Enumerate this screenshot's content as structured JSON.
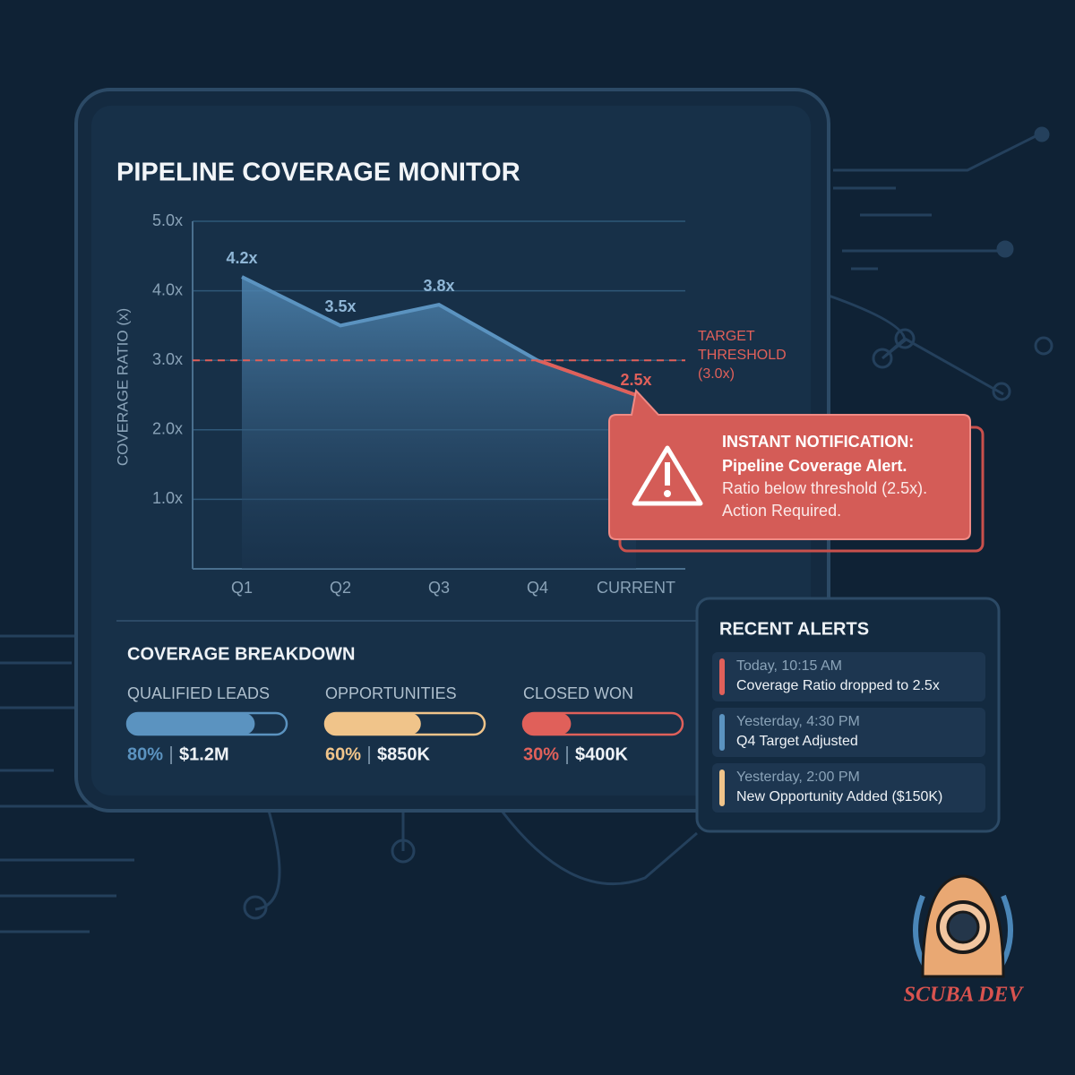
{
  "chart_data": {
    "type": "area",
    "title": "PIPELINE COVERAGE MONITOR",
    "y_label": "COVERAGE RATIO (x)",
    "categories": [
      "Q1",
      "Q2",
      "Q3",
      "Q4",
      "CURRENT"
    ],
    "values": [
      4.2,
      3.5,
      3.8,
      3.0,
      2.5
    ],
    "value_labels": [
      "4.2x",
      "3.5x",
      "3.8x",
      null,
      "2.5x"
    ],
    "color": "#5b93c0",
    "alert_color": "#e0605a",
    "ylim": [
      0,
      5
    ],
    "yticks": [
      {
        "value": 1,
        "label": "1.0x"
      },
      {
        "value": 2,
        "label": "2.0x"
      },
      {
        "value": 3,
        "label": "3.0x"
      },
      {
        "value": 4,
        "label": "4.0x"
      },
      {
        "value": 5,
        "label": "5.0x"
      }
    ],
    "grid": true,
    "threshold": {
      "value": 3,
      "lines": [
        "TARGET",
        "THRESHOLD",
        "(3.0x)"
      ]
    }
  },
  "notification": {
    "title": "INSTANT NOTIFICATION:",
    "headline": "Pipeline Coverage Alert.",
    "lines": [
      "Ratio below threshold (2.5x).",
      "Action Required."
    ]
  },
  "breakdown": {
    "title": "COVERAGE BREAKDOWN",
    "items": [
      {
        "name": "QUALIFIED LEADS",
        "percent": 80,
        "percent_label": "80%",
        "amount": "$1.2M",
        "color": "#5b93c0"
      },
      {
        "name": "OPPORTUNITIES",
        "percent": 60,
        "percent_label": "60%",
        "amount": "$850K",
        "color": "#f0c48a"
      },
      {
        "name": "CLOSED WON",
        "percent": 30,
        "percent_label": "30%",
        "amount": "$400K",
        "color": "#e0605a"
      }
    ]
  },
  "alerts": {
    "title": "RECENT ALERTS",
    "items": [
      {
        "time": "Today, 10:15 AM",
        "text": "Coverage Ratio dropped to 2.5x",
        "color": "#e0605a"
      },
      {
        "time": "Yesterday, 4:30 PM",
        "text": "Q4 Target Adjusted",
        "color": "#5b93c0"
      },
      {
        "time": "Yesterday, 2:00 PM",
        "text": "New Opportunity Added ($150K)",
        "color": "#f0c48a"
      }
    ]
  },
  "logo": {
    "text": "SCUBA DEV"
  }
}
